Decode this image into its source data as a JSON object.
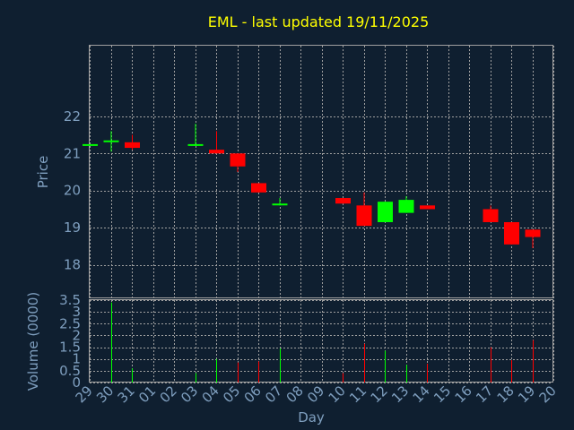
{
  "chart_data": [
    {
      "type": "candlestick",
      "title": "EML - last updated 19/11/2025",
      "ylabel": "Price",
      "ylim": [
        17.1,
        23.9
      ],
      "yticks": [
        18,
        19,
        20,
        21,
        22
      ],
      "up_color": "#00ff00",
      "down_color": "#ff0000",
      "candles": [
        {
          "day": "29",
          "open": 21.25,
          "close": 21.25,
          "high": 21.25,
          "low": 21.25
        },
        {
          "day": "30",
          "open": 21.35,
          "close": 21.35,
          "high": 21.6,
          "low": 21.05
        },
        {
          "day": "31",
          "open": 21.3,
          "close": 21.15,
          "high": 21.5,
          "low": 21.1
        },
        {
          "day": "03",
          "open": 21.25,
          "close": 21.25,
          "high": 21.8,
          "low": 21.2
        },
        {
          "day": "04",
          "open": 21.1,
          "close": 21.0,
          "high": 21.6,
          "low": 21.0
        },
        {
          "day": "05",
          "open": 21.0,
          "close": 20.65,
          "high": 21.0,
          "low": 20.5
        },
        {
          "day": "06",
          "open": 20.2,
          "close": 19.95,
          "high": 20.2,
          "low": 19.95
        },
        {
          "day": "07",
          "open": 19.65,
          "close": 19.65,
          "high": 19.8,
          "low": 19.6
        },
        {
          "day": "10",
          "open": 19.8,
          "close": 19.65,
          "high": 19.8,
          "low": 19.65
        },
        {
          "day": "11",
          "open": 19.6,
          "close": 19.05,
          "high": 19.95,
          "low": 19.05
        },
        {
          "day": "12",
          "open": 19.15,
          "close": 19.7,
          "high": 19.7,
          "low": 19.15
        },
        {
          "day": "13",
          "open": 19.4,
          "close": 19.75,
          "high": 19.85,
          "low": 19.4
        },
        {
          "day": "14",
          "open": 19.6,
          "close": 19.5,
          "high": 19.6,
          "low": 19.5
        },
        {
          "day": "17",
          "open": 19.5,
          "close": 19.15,
          "high": 19.6,
          "low": 19.15
        },
        {
          "day": "18",
          "open": 19.15,
          "close": 18.55,
          "high": 19.15,
          "low": 18.55
        },
        {
          "day": "19",
          "open": 18.95,
          "close": 18.75,
          "high": 18.95,
          "low": 18.45
        }
      ]
    },
    {
      "type": "bar",
      "ylabel": "Volume (0000)",
      "xlabel": "Day",
      "ylim": [
        0,
        3.5
      ],
      "yticks": [
        0,
        0.5,
        1,
        1.5,
        2,
        2.5,
        3,
        3.5
      ],
      "categories": [
        "29",
        "30",
        "31",
        "01",
        "02",
        "03",
        "04",
        "05",
        "06",
        "07",
        "08",
        "09",
        "10",
        "11",
        "12",
        "13",
        "14",
        "15",
        "16",
        "17",
        "18",
        "19",
        "20"
      ],
      "values": [
        0,
        3.4,
        0.6,
        0,
        0,
        0.4,
        1.0,
        0.85,
        0.9,
        1.45,
        0,
        0,
        0.4,
        1.65,
        1.35,
        0.75,
        0.8,
        0,
        0,
        1.5,
        0.95,
        1.8,
        0
      ],
      "bar_colors": [
        "",
        "#00ff00",
        "#00ff00",
        "",
        "",
        "#00ff00",
        "#00ff00",
        "#ff0000",
        "#ff0000",
        "#00ff00",
        "",
        "",
        "#ff0000",
        "#ff0000",
        "#00ff00",
        "#00ff00",
        "#ff0000",
        "",
        "",
        "#ff0000",
        "#ff0000",
        "#ff0000",
        ""
      ]
    }
  ]
}
